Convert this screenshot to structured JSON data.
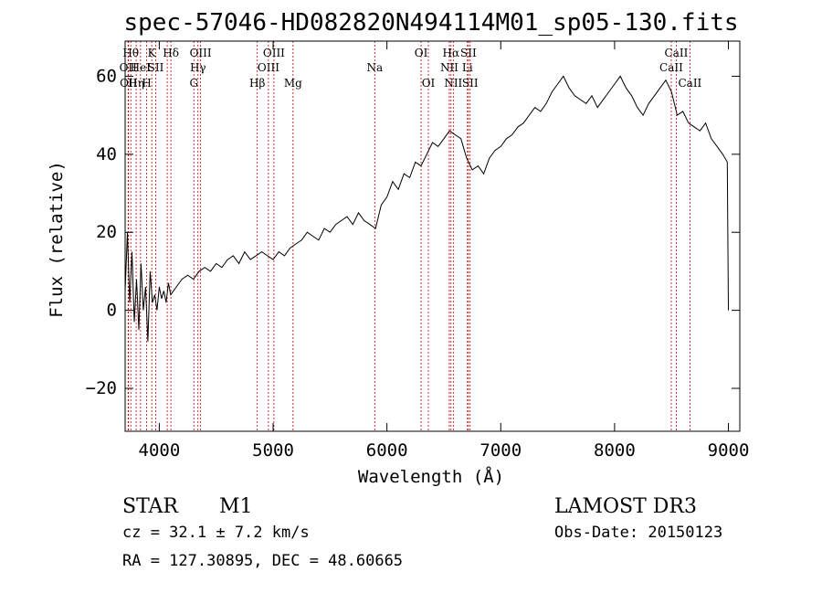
{
  "chart_data": {
    "type": "line",
    "title": "spec-57046-HD082820N494114M01_sp05-130.fits",
    "xlabel": "Wavelength (Å)",
    "ylabel": "Flux (relative)",
    "xlim": [
      3700,
      9100
    ],
    "ylim": [
      -31,
      69
    ],
    "x_ticks": [
      4000,
      5000,
      6000,
      7000,
      8000,
      9000
    ],
    "y_ticks": [
      -20,
      0,
      20,
      40,
      60
    ],
    "x_tick_labels": [
      "4000",
      "5000",
      "6000",
      "7000",
      "8000",
      "9000"
    ],
    "y_tick_labels": [
      "−20",
      "0",
      "20",
      "40",
      "60"
    ],
    "series": [
      {
        "name": "flux",
        "x": [
          3700,
          3720,
          3740,
          3760,
          3780,
          3800,
          3820,
          3840,
          3860,
          3880,
          3900,
          3920,
          3940,
          3960,
          3980,
          4000,
          4020,
          4040,
          4060,
          4080,
          4100,
          4150,
          4200,
          4250,
          4300,
          4350,
          4400,
          4450,
          4500,
          4550,
          4600,
          4650,
          4700,
          4750,
          4800,
          4850,
          4900,
          4950,
          5000,
          5050,
          5100,
          5150,
          5200,
          5250,
          5300,
          5350,
          5400,
          5450,
          5500,
          5550,
          5600,
          5650,
          5700,
          5750,
          5800,
          5850,
          5900,
          5950,
          6000,
          6050,
          6100,
          6150,
          6200,
          6250,
          6300,
          6350,
          6400,
          6450,
          6500,
          6550,
          6600,
          6650,
          6700,
          6750,
          6800,
          6850,
          6900,
          6950,
          7000,
          7050,
          7100,
          7150,
          7200,
          7250,
          7300,
          7350,
          7400,
          7450,
          7500,
          7550,
          7600,
          7650,
          7700,
          7750,
          7800,
          7850,
          7900,
          7950,
          8000,
          8050,
          8100,
          8150,
          8200,
          8250,
          8300,
          8350,
          8400,
          8450,
          8500,
          8550,
          8600,
          8650,
          8700,
          8750,
          8800,
          8850,
          8900,
          8950,
          8990,
          9000
        ],
        "y": [
          5,
          20,
          2,
          15,
          -3,
          8,
          -5,
          12,
          0,
          6,
          -8,
          10,
          2,
          4,
          0,
          6,
          3,
          5,
          2,
          7,
          4,
          6,
          8,
          9,
          8,
          10,
          11,
          10,
          12,
          11,
          13,
          14,
          12,
          15,
          13,
          14,
          15,
          14,
          13,
          15,
          14,
          16,
          17,
          18,
          20,
          19,
          18,
          21,
          20,
          22,
          23,
          24,
          22,
          25,
          23,
          22,
          21,
          27,
          29,
          33,
          31,
          35,
          34,
          38,
          37,
          40,
          43,
          42,
          44,
          46,
          45,
          44,
          39,
          36,
          37,
          35,
          39,
          41,
          42,
          44,
          45,
          47,
          48,
          50,
          52,
          51,
          53,
          56,
          58,
          60,
          57,
          55,
          54,
          53,
          55,
          52,
          54,
          56,
          58,
          60,
          57,
          55,
          52,
          50,
          53,
          55,
          57,
          59,
          56,
          50,
          51,
          48,
          47,
          46,
          48,
          44,
          42,
          40,
          38,
          0
        ]
      }
    ],
    "spectral_lines": [
      {
        "x": 3726,
        "label": "OII",
        "row": 2
      },
      {
        "x": 3730,
        "label": "OII",
        "row": 3
      },
      {
        "x": 3750,
        "label": "Hθ",
        "row": 1
      },
      {
        "x": 3797,
        "label": "Hη",
        "row": 3
      },
      {
        "x": 3835,
        "label": "HeI",
        "row": 2
      },
      {
        "x": 3889,
        "label": "H",
        "row": 3
      },
      {
        "x": 3934,
        "label": "K",
        "row": 1
      },
      {
        "x": 3969,
        "label": "SII",
        "row": 2
      },
      {
        "x": 4102,
        "label": "Hδ",
        "row": 1
      },
      {
        "x": 4070,
        "label": "",
        "row": 0
      },
      {
        "x": 4304,
        "label": "G",
        "row": 3
      },
      {
        "x": 4340,
        "label": "Hγ",
        "row": 2
      },
      {
        "x": 4363,
        "label": "OIII",
        "row": 1
      },
      {
        "x": 4861,
        "label": "Hβ",
        "row": 3
      },
      {
        "x": 4959,
        "label": "OIII",
        "row": 2
      },
      {
        "x": 5007,
        "label": "OIII",
        "row": 1
      },
      {
        "x": 5175,
        "label": "Mg",
        "row": 3
      },
      {
        "x": 5893,
        "label": "Na",
        "row": 2
      },
      {
        "x": 6300,
        "label": "OI",
        "row": 1
      },
      {
        "x": 6364,
        "label": "OI",
        "row": 3
      },
      {
        "x": 6548,
        "label": "NII",
        "row": 2
      },
      {
        "x": 6563,
        "label": "Hα",
        "row": 1
      },
      {
        "x": 6583,
        "label": "NII",
        "row": 3
      },
      {
        "x": 6707,
        "label": "Li",
        "row": 2
      },
      {
        "x": 6716,
        "label": "SII",
        "row": 1
      },
      {
        "x": 6731,
        "label": "SII",
        "row": 3
      },
      {
        "x": 8498,
        "label": "CaII",
        "row": 2
      },
      {
        "x": 8542,
        "label": "CaII",
        "row": 1
      },
      {
        "x": 8662,
        "label": "CaII",
        "row": 3
      }
    ],
    "line_color": "#000000",
    "marker_color": "#cc0000"
  },
  "info": {
    "object_class": "STAR",
    "subclass": "M1",
    "survey": "LAMOST DR3",
    "redshift": "cz = 32.1 ± 7.2 km/s",
    "obs_date": "Obs-Date: 20150123",
    "coords": "RA = 127.30895, DEC =  48.60665"
  }
}
